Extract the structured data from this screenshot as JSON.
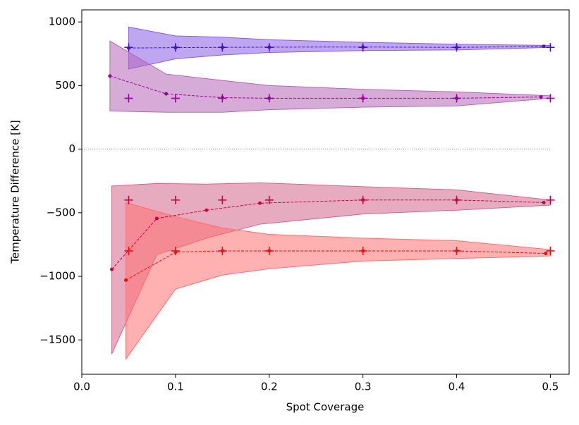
{
  "chart_data": {
    "type": "line",
    "xlabel": "Spot Coverage",
    "ylabel": "Temperature Difference [K]",
    "xlim": [
      0,
      0.52
    ],
    "ylim": [
      -1770,
      1095
    ],
    "xticks": [
      {
        "value": 0,
        "label": "0.0"
      },
      0.1,
      0.2,
      0.3,
      0.4,
      0.5
    ],
    "yticks": [
      1000,
      500,
      0,
      {
        "value": -500,
        "label": "−500"
      },
      {
        "value": -1000,
        "label": "−1000"
      },
      {
        "value": -1500,
        "label": "−1500"
      }
    ],
    "reference_line": 0,
    "series": [
      {
        "color": "#4a10d0",
        "fill_color": "#8a5ce6",
        "x": [
          0.05,
          0.1,
          0.15,
          0.2,
          0.3,
          0.4,
          0.493
        ],
        "values": [
          795,
          798,
          800,
          802,
          803,
          800,
          808
        ],
        "band_x": [
          0.05,
          0.1,
          0.15,
          0.2,
          0.3,
          0.4,
          0.5
        ],
        "upper": [
          960,
          890,
          880,
          860,
          840,
          825,
          815
        ],
        "lower": [
          630,
          710,
          740,
          760,
          775,
          780,
          800
        ],
        "true_x": [
          0.05,
          0.1,
          0.15,
          0.2,
          0.3,
          0.4,
          0.5
        ],
        "true_values": [
          800,
          800,
          800,
          800,
          800,
          800,
          800
        ]
      },
      {
        "color": "#990099",
        "fill_color": "#b766b7",
        "x": [
          0.03,
          0.09,
          0.15,
          0.2,
          0.3,
          0.4,
          0.49
        ],
        "values": [
          575,
          435,
          405,
          400,
          400,
          400,
          410
        ],
        "band_x": [
          0.03,
          0.09,
          0.15,
          0.2,
          0.3,
          0.4,
          0.5
        ],
        "upper": [
          850,
          590,
          540,
          500,
          470,
          450,
          420
        ],
        "lower": [
          300,
          290,
          290,
          310,
          330,
          340,
          400
        ],
        "true_x": [
          0.05,
          0.1,
          0.15,
          0.2,
          0.3,
          0.4,
          0.5
        ],
        "true_values": [
          400,
          400,
          400,
          400,
          400,
          400,
          400
        ]
      },
      {
        "color": "#cc0044",
        "fill_color": "#d4668a",
        "x": [
          0.032,
          0.08,
          0.133,
          0.19,
          0.3,
          0.4,
          0.493
        ],
        "values": [
          -945,
          -545,
          -480,
          -425,
          -400,
          -400,
          -420
        ],
        "band_x": [
          0.032,
          0.08,
          0.133,
          0.19,
          0.3,
          0.4,
          0.5
        ],
        "upper": [
          -290,
          -270,
          -275,
          -265,
          -295,
          -320,
          -400
        ],
        "lower": [
          -1610,
          -830,
          -700,
          -590,
          -510,
          -480,
          -440
        ],
        "true_x": [
          0.05,
          0.1,
          0.15,
          0.2,
          0.3,
          0.4,
          0.5
        ],
        "true_values": [
          -400,
          -400,
          -400,
          -400,
          -400,
          -400,
          -400
        ]
      },
      {
        "color": "#ee1111",
        "fill_color": "#ff7070",
        "x": [
          0.047,
          0.1,
          0.15,
          0.2,
          0.3,
          0.4,
          0.495
        ],
        "values": [
          -1030,
          -810,
          -800,
          -800,
          -800,
          -800,
          -820
        ],
        "band_x": [
          0.047,
          0.1,
          0.15,
          0.2,
          0.3,
          0.4,
          0.5
        ],
        "upper": [
          -420,
          -530,
          -620,
          -670,
          -700,
          -720,
          -790
        ],
        "lower": [
          -1650,
          -1100,
          -990,
          -940,
          -880,
          -860,
          -840
        ],
        "true_x": [
          0.05,
          0.1,
          0.15,
          0.2,
          0.3,
          0.4,
          0.5
        ],
        "true_values": [
          -800,
          -800,
          -800,
          -800,
          -800,
          -800,
          -800
        ]
      }
    ]
  }
}
